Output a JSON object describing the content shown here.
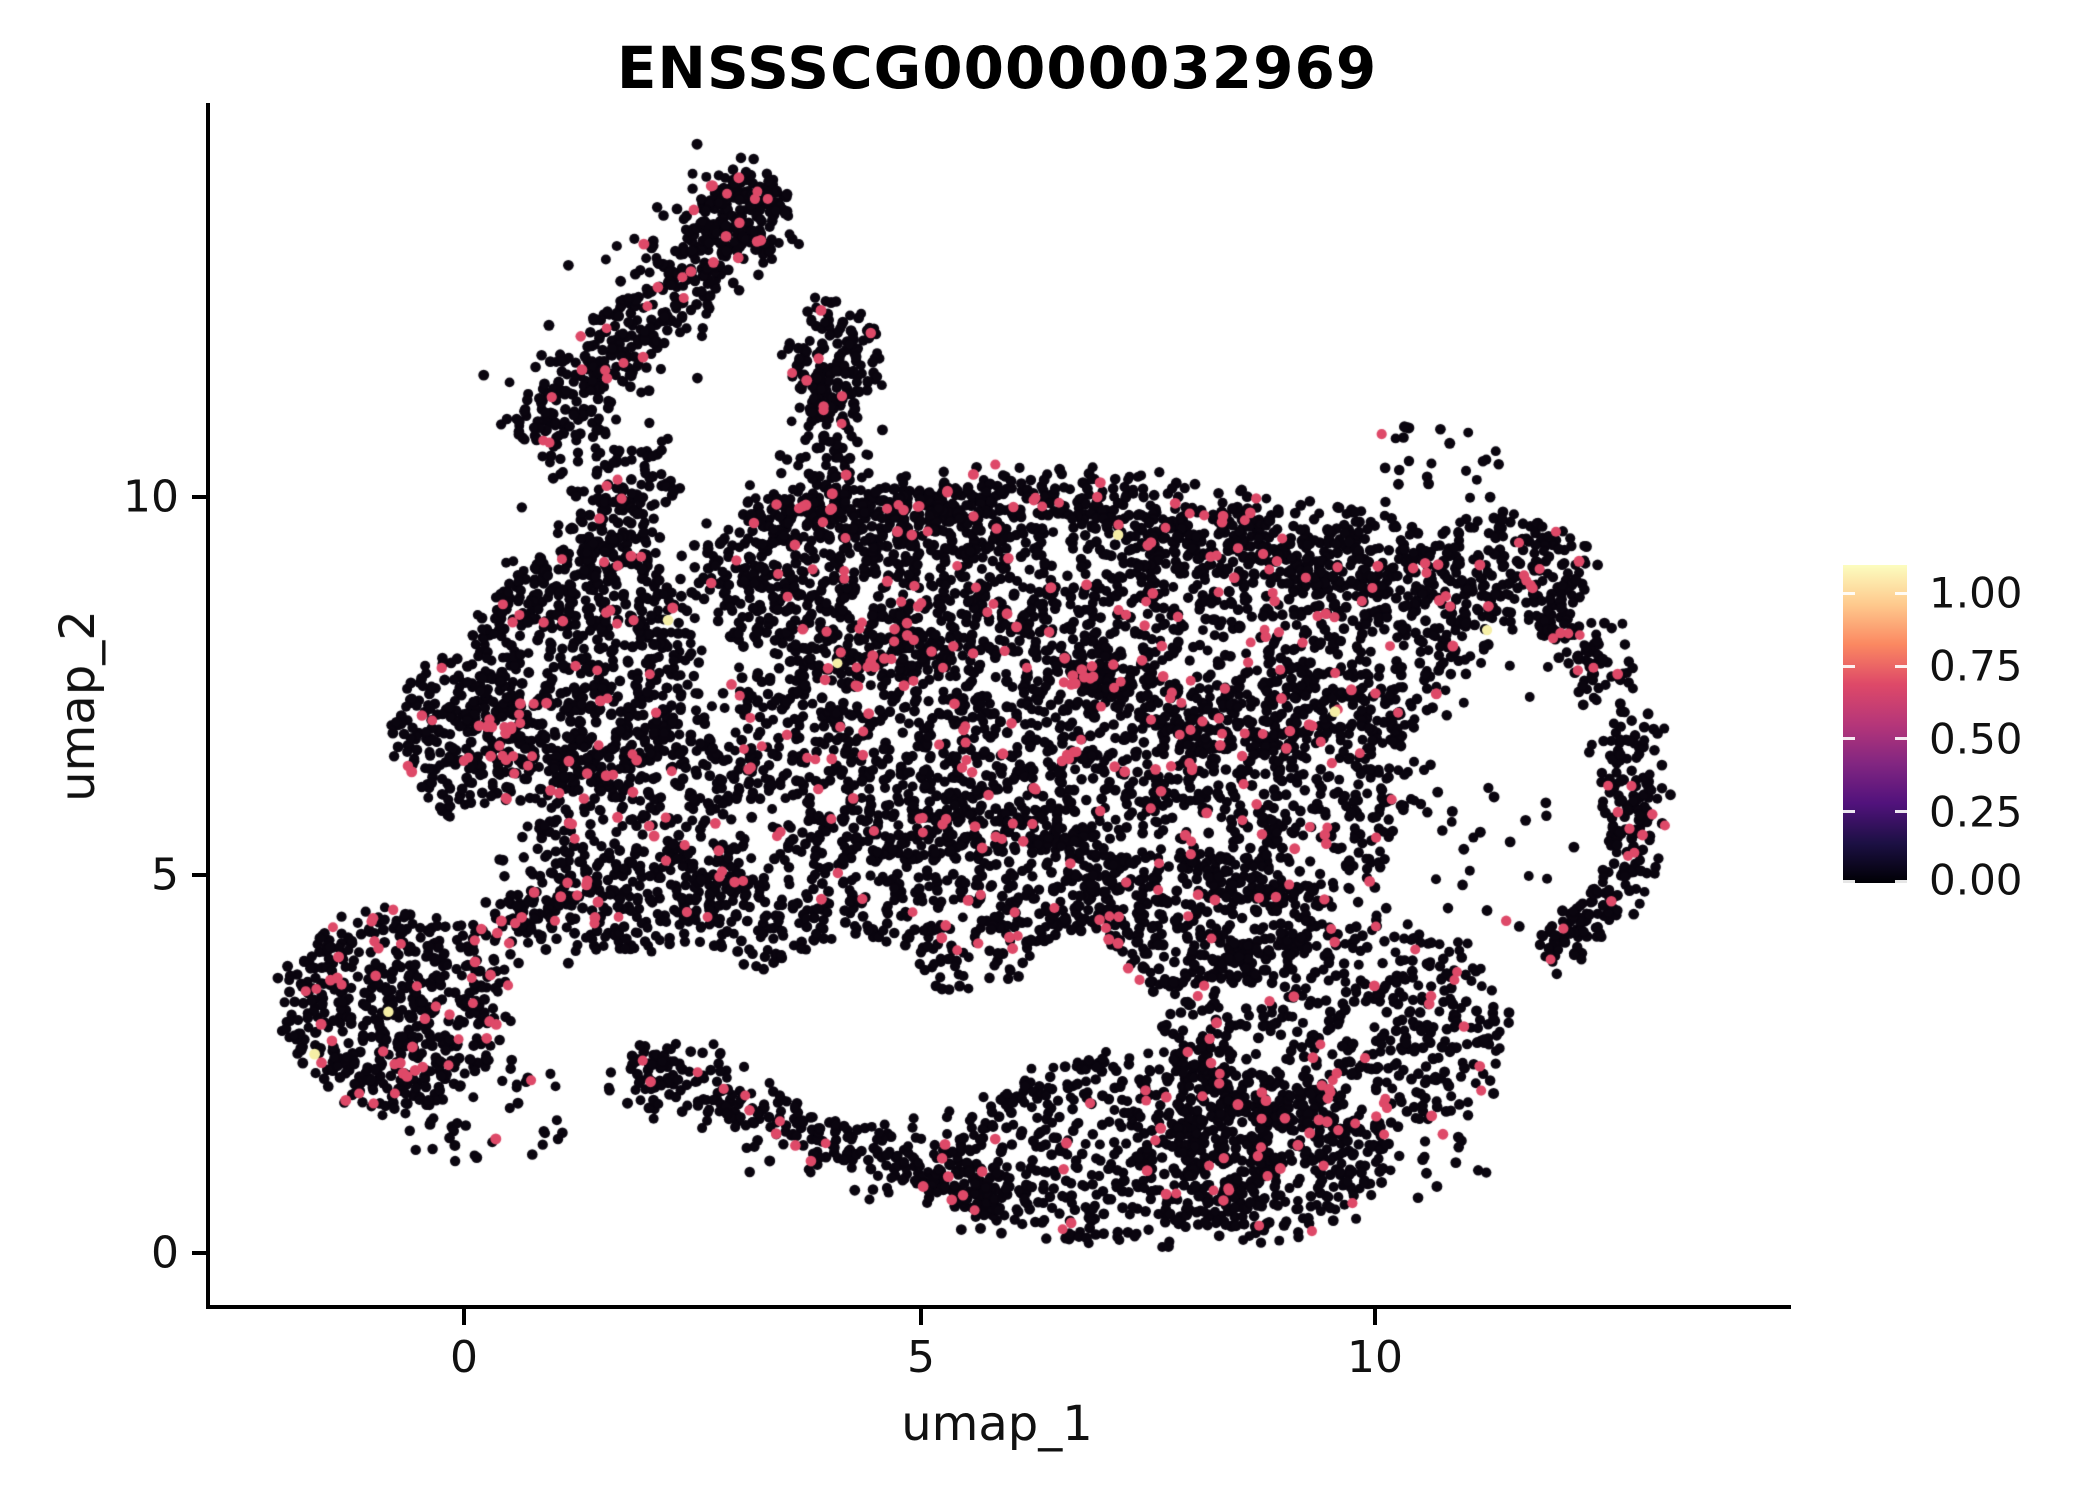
{
  "chart_data": {
    "type": "scatter",
    "title": "ENSSSCG00000032969",
    "xlabel": "umap_1",
    "ylabel": "umap_2",
    "xlim": [
      -2.8,
      14.55
    ],
    "ylim": [
      -0.72,
      15.2
    ],
    "grid": false,
    "xticks": {
      "values": [
        0,
        5,
        10
      ],
      "labels": [
        "0",
        "5",
        "10"
      ]
    },
    "yticks": {
      "values": [
        0,
        5,
        10
      ],
      "labels": [
        "0",
        "5",
        "10"
      ]
    },
    "legend_position": "right",
    "point_style": {
      "radius_px": 5.2,
      "color_zero": "#0A050F",
      "color_mid": "#DE4968",
      "color_high": "#F6EFA6"
    },
    "colorbar": {
      "colormap": "magma",
      "tick_labels": [
        "1.00",
        "0.75",
        "0.50",
        "0.25",
        "0.00"
      ],
      "tick_values": [
        1.0,
        0.75,
        0.5,
        0.25,
        0.0
      ],
      "value_span_of_bar": 1.097,
      "gradient_stops": [
        "#000004",
        "#1c1044",
        "#51127c",
        "#822681",
        "#b63679",
        "#de4968",
        "#fb8861",
        "#fec98d",
        "#fcfdbf"
      ]
    },
    "seed": 1337,
    "expression_note": "most cells ~0 (black); expressing cells ~0.6 (pink-red); rare cells ~1.0 (cream)",
    "clusters": [
      {
        "id": "arm-band",
        "type": "band",
        "x1": 3.25,
        "y1": 14.19,
        "x2": 0.78,
        "y2": 10.62,
        "w": 0.9,
        "n": 480,
        "red": 0.03
      },
      {
        "id": "arm-top",
        "type": "blob",
        "cx": 3.08,
        "cy": 13.73,
        "rx": 0.49,
        "ry": 0.6,
        "n": 130,
        "red": 0.03
      },
      {
        "id": "crest",
        "type": "blob",
        "cx": 4.04,
        "cy": 11.88,
        "rx": 0.53,
        "ry": 0.73,
        "n": 150,
        "red": 0.04
      },
      {
        "id": "crest-neck",
        "type": "band",
        "x1": 4.04,
        "y1": 11.42,
        "x2": 4.04,
        "y2": 10.22,
        "w": 0.6,
        "n": 80,
        "red": 0.04
      },
      {
        "id": "arm-neck",
        "type": "band",
        "x1": 1.93,
        "y1": 10.62,
        "x2": 1.6,
        "y2": 9.17,
        "w": 0.84,
        "n": 150,
        "red": 0.04
      },
      {
        "id": "body-topleft",
        "type": "blob",
        "cx": 1.33,
        "cy": 7.84,
        "rx": 1.21,
        "ry": 1.65,
        "n": 680,
        "red": 0.05
      },
      {
        "id": "body-left-wedge",
        "type": "blob",
        "cx": -0.02,
        "cy": 6.85,
        "rx": 0.75,
        "ry": 1.06,
        "n": 230,
        "red": 0.06
      },
      {
        "id": "left-edge-red",
        "type": "band",
        "x1": 0.18,
        "y1": 7.32,
        "x2": 0.62,
        "y2": 5.99,
        "w": 0.48,
        "n": 30,
        "red": 0.45
      },
      {
        "id": "body-topmid",
        "type": "blob",
        "cx": 4.57,
        "cy": 8.9,
        "rx": 1.98,
        "ry": 1.32,
        "n": 800,
        "red": 0.06
      },
      {
        "id": "top-band-a",
        "type": "band",
        "x1": 3.14,
        "y1": 9.76,
        "x2": 7.53,
        "y2": 9.89,
        "w": 0.72,
        "n": 420,
        "red": 0.05
      },
      {
        "id": "top-band-b",
        "type": "band",
        "x1": 7.53,
        "y1": 9.63,
        "x2": 10.16,
        "y2": 8.84,
        "w": 0.72,
        "n": 260,
        "red": 0.05
      },
      {
        "id": "body-topright",
        "type": "blob",
        "cx": 8.79,
        "cy": 8.31,
        "rx": 2.47,
        "ry": 1.72,
        "n": 1000,
        "red": 0.06
      },
      {
        "id": "right-upper",
        "type": "blob",
        "cx": 11.37,
        "cy": 9.04,
        "rx": 0.99,
        "ry": 0.73,
        "n": 220,
        "red": 0.06
      },
      {
        "id": "rim-top",
        "type": "band",
        "x1": 11.81,
        "y1": 8.64,
        "x2": 12.69,
        "y2": 7.45,
        "w": 0.54,
        "n": 110,
        "red": 0.05
      },
      {
        "id": "rim-right",
        "type": "band",
        "x1": 12.8,
        "y1": 7.16,
        "x2": 12.8,
        "y2": 4.93,
        "w": 0.48,
        "n": 150,
        "red": 0.04
      },
      {
        "id": "rim-low",
        "type": "band",
        "x1": 12.63,
        "y1": 4.93,
        "x2": 11.86,
        "y2": 3.88,
        "w": 0.48,
        "n": 100,
        "red": 0.04
      },
      {
        "id": "hole-sparse",
        "type": "sparse",
        "cx": 11.32,
        "cy": 5.26,
        "rx": 1.1,
        "ry": 1.06,
        "n": 26,
        "red": 0.08
      },
      {
        "id": "mid-band",
        "type": "blob",
        "cx": 5.44,
        "cy": 6.72,
        "rx": 2.8,
        "ry": 1.46,
        "n": 1050,
        "red": 0.07
      },
      {
        "id": "mid-right",
        "type": "blob",
        "cx": 9.07,
        "cy": 5.99,
        "rx": 1.54,
        "ry": 1.46,
        "n": 480,
        "red": 0.08
      },
      {
        "id": "center-low",
        "type": "blob",
        "cx": 5.01,
        "cy": 4.67,
        "rx": 2.58,
        "ry": 1.22,
        "n": 620,
        "red": 0.07
      },
      {
        "id": "left-low",
        "type": "blob",
        "cx": 1.93,
        "cy": 5.46,
        "rx": 1.19,
        "ry": 1.56,
        "n": 430,
        "red": 0.05
      },
      {
        "id": "bottom-strip",
        "type": "band",
        "x1": 1.82,
        "y1": 2.49,
        "x2": 5.99,
        "y2": 0.63,
        "w": 0.66,
        "n": 380,
        "red": 0.05
      },
      {
        "id": "bottom-center",
        "type": "blob",
        "cx": 7.2,
        "cy": 1.36,
        "rx": 1.87,
        "ry": 1.26,
        "n": 520,
        "red": 0.06
      },
      {
        "id": "bottom-center-r",
        "type": "blob",
        "cx": 8.74,
        "cy": 1.23,
        "rx": 1.32,
        "ry": 1.06,
        "n": 400,
        "red": 0.07
      },
      {
        "id": "bottom-right",
        "type": "blob",
        "cx": 9.62,
        "cy": 2.95,
        "rx": 1.87,
        "ry": 1.48,
        "n": 580,
        "red": 0.07
      },
      {
        "id": "connector",
        "type": "blob",
        "cx": 7.86,
        "cy": 4.4,
        "rx": 1.43,
        "ry": 0.93,
        "n": 330,
        "red": 0.07
      },
      {
        "id": "island",
        "type": "blob",
        "cx": -0.76,
        "cy": 3.21,
        "rx": 1.23,
        "ry": 1.3,
        "n": 540,
        "red": 0.1
      },
      {
        "id": "island-spur",
        "type": "band",
        "x1": 0.07,
        "y1": 4.07,
        "x2": 1.22,
        "y2": 4.83,
        "w": 0.42,
        "n": 80,
        "red": 0.08
      },
      {
        "id": "island-halo",
        "type": "sparse",
        "cx": 0.18,
        "cy": 1.89,
        "rx": 1.04,
        "ry": 0.73,
        "n": 50,
        "red": 0.06
      },
      {
        "id": "strays-left",
        "type": "sparse",
        "cx": 1.05,
        "cy": 4.67,
        "rx": 0.77,
        "ry": 1.06,
        "n": 45,
        "red": 0.05
      },
      {
        "id": "strays-topright",
        "type": "sparse",
        "cx": 10.6,
        "cy": 10.36,
        "rx": 0.88,
        "ry": 0.6,
        "n": 25,
        "red": 0.05
      },
      {
        "id": "strays-bottomright",
        "type": "sparse",
        "cx": 10.27,
        "cy": 1.36,
        "rx": 1.1,
        "ry": 0.66,
        "n": 30,
        "red": 0.07
      }
    ],
    "voids": [
      {
        "cx": 11.32,
        "cy": 5.26,
        "rx": 1.15,
        "ry": 1.11
      },
      {
        "cx": 4.29,
        "cy": 2.95,
        "rx": 1.01,
        "ry": 1.22
      },
      {
        "cx": 6.71,
        "cy": 3.51,
        "rx": 0.6,
        "ry": 0.73
      }
    ],
    "high_value_cells": [
      {
        "x": 11.23,
        "y": 8.24,
        "value": 1.0
      },
      {
        "x": 9.56,
        "y": 7.16,
        "value": 1.0
      },
      {
        "x": -0.83,
        "y": 3.19,
        "value": 1.0
      },
      {
        "x": -1.64,
        "y": 2.63,
        "value": 1.0
      },
      {
        "x": 2.24,
        "y": 8.37,
        "value": 1.0
      },
      {
        "x": 7.18,
        "y": 9.5,
        "value": 1.0
      },
      {
        "x": 4.1,
        "y": 7.8,
        "value": 1.0
      }
    ]
  }
}
